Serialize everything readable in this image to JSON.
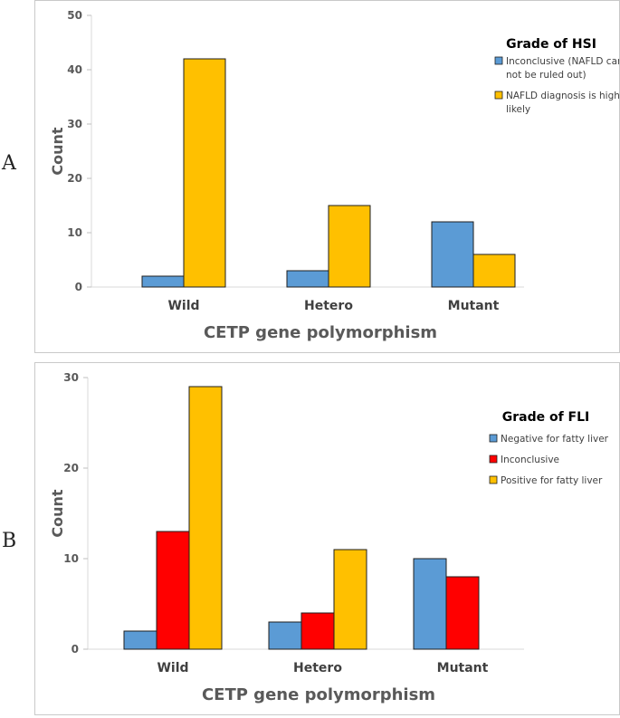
{
  "panels": [
    {
      "letter": "A",
      "chart_data": {
        "type": "bar",
        "categories": [
          "Wild",
          "Hetero",
          "Mutant"
        ],
        "series": [
          {
            "name": "Inconclusive (NAFLD can not be ruled out)",
            "label_lines": [
              "Inconclusive (NAFLD can",
              "not be ruled out)"
            ],
            "values": [
              2,
              3,
              12
            ],
            "color": "#5b9bd5"
          },
          {
            "name": "NAFLD diagnosis is highly likely",
            "label_lines": [
              "NAFLD diagnosis is highly",
              "likely"
            ],
            "values": [
              42,
              15,
              6
            ],
            "color": "#ffc000"
          }
        ],
        "title": "",
        "xlabel": "CETP gene polymorphism",
        "ylabel": "Count",
        "ylim": [
          0,
          50
        ],
        "yticks": [
          0,
          10,
          20,
          30,
          40,
          50
        ],
        "grid": false,
        "legend_title": "Grade of HSI",
        "legend_position": "top-right"
      }
    },
    {
      "letter": "B",
      "chart_data": {
        "type": "bar",
        "categories": [
          "Wild",
          "Hetero",
          "Mutant"
        ],
        "series": [
          {
            "name": "Negative for fatty liver",
            "label_lines": [
              "Negative for fatty liver"
            ],
            "values": [
              2,
              3,
              10
            ],
            "color": "#5b9bd5"
          },
          {
            "name": "Inconclusive",
            "label_lines": [
              "Inconclusive"
            ],
            "values": [
              13,
              4,
              8
            ],
            "color": "#ff0000"
          },
          {
            "name": "Positive for fatty liver",
            "label_lines": [
              "Positive for fatty liver"
            ],
            "values": [
              29,
              11,
              0
            ],
            "color": "#ffc000"
          }
        ],
        "title": "",
        "xlabel": "CETP gene polymorphism",
        "ylabel": "Count",
        "ylim": [
          0,
          30
        ],
        "yticks": [
          0,
          10,
          20,
          30
        ],
        "grid": false,
        "legend_title": "Grade of FLI",
        "legend_position": "top-right"
      }
    }
  ]
}
